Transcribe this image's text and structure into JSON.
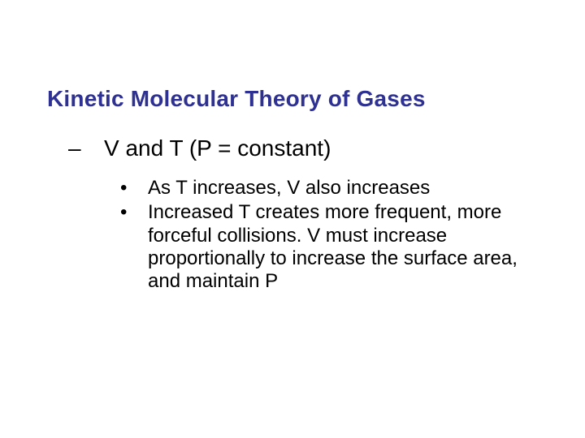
{
  "slide": {
    "title": "Kinetic Molecular Theory of Gases",
    "title_color": "#2e3192",
    "title_fontsize": 28,
    "title_fontweight": 700,
    "background_color": "#ffffff",
    "sub": {
      "marker": "–",
      "text": "V and T (P = constant)",
      "fontsize": 28,
      "color": "#000000"
    },
    "bullets": [
      {
        "marker": "•",
        "text": "As T increases, V also increases"
      },
      {
        "marker": "•",
        "text": "Increased T creates more frequent, more forceful collisions.  V must increase proportionally to increase the surface area, and maintain P"
      }
    ],
    "bullet_fontsize": 24,
    "bullet_color": "#000000"
  }
}
